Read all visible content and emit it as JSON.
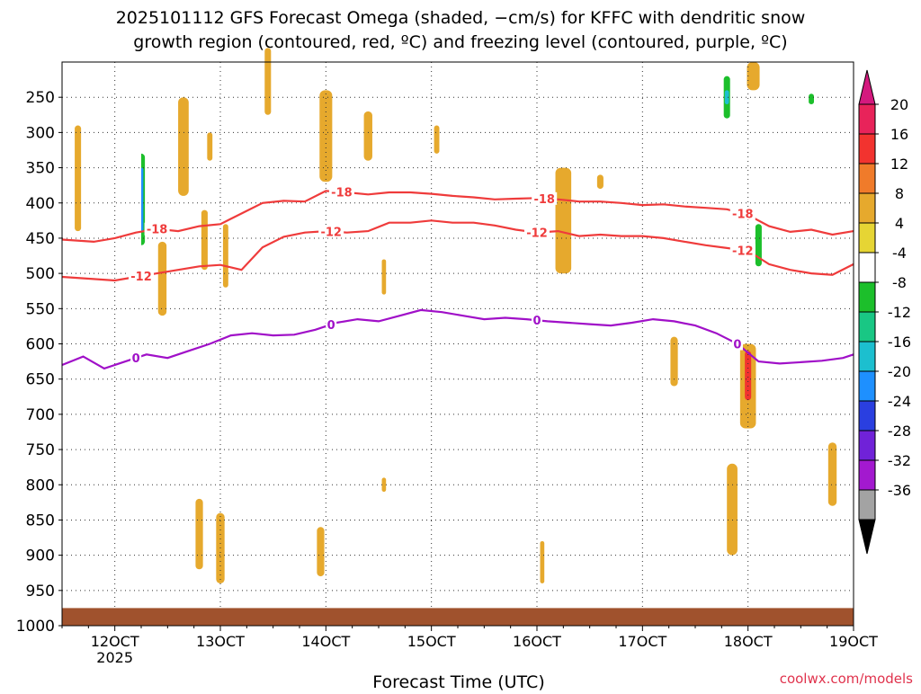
{
  "chart_data": {
    "type": "heatmap",
    "title_lines": [
      "2025101112 GFS Forecast Omega (shaded, −cm/s) for KFFC with dendritic snow",
      "growth region (contoured, red, ºC) and freezing level (contoured, purple, ºC)"
    ],
    "xlabel": "Forecast Time (UTC)",
    "x_ticks": [
      {
        "value": 12,
        "label": "12OCT",
        "sublabel": "2025"
      },
      {
        "value": 13,
        "label": "13OCT",
        "sublabel": ""
      },
      {
        "value": 14,
        "label": "14OCT",
        "sublabel": ""
      },
      {
        "value": 15,
        "label": "15OCT",
        "sublabel": ""
      },
      {
        "value": 16,
        "label": "16OCT",
        "sublabel": ""
      },
      {
        "value": 17,
        "label": "17OCT",
        "sublabel": ""
      },
      {
        "value": 18,
        "label": "18OCT",
        "sublabel": ""
      },
      {
        "value": 19,
        "label": "19OCT",
        "sublabel": ""
      }
    ],
    "x_range": [
      11.5,
      19.0
    ],
    "y_ticks": [
      250,
      300,
      350,
      400,
      450,
      500,
      550,
      600,
      650,
      700,
      750,
      800,
      850,
      900,
      950,
      1000
    ],
    "y_range": [
      200,
      1000
    ],
    "credit": "coolwx.com/models",
    "colorbar": {
      "labels": [
        "20",
        "16",
        "12",
        "8",
        "4",
        "-4",
        "-8",
        "-12",
        "-16",
        "-20",
        "-24",
        "-28",
        "-32",
        "-36"
      ],
      "colors": [
        "#e8235a",
        "#f2332f",
        "#f07b2a",
        "#e6a92d",
        "#e6d534",
        "#ffffff",
        "#1cbf2b",
        "#19c784",
        "#1cbfcf",
        "#1e90ff",
        "#2a3fe0",
        "#7022d8",
        "#a319cf",
        "#a3a3a3"
      ],
      "top_arrow_color": "#d4197e",
      "bottom_arrow_color": "#000000"
    },
    "contour_colors": {
      "dgz": "#ef3b3b",
      "freezing": "#a010c8",
      "ground": "#a0522d"
    },
    "dgz_minus18": {
      "x": [
        11.5,
        11.8,
        12.0,
        12.2,
        12.4,
        12.6,
        12.8,
        13.0,
        13.2,
        13.4,
        13.6,
        13.8,
        14.0,
        14.2,
        14.4,
        14.6,
        14.8,
        15.0,
        15.2,
        15.4,
        15.6,
        15.8,
        16.0,
        16.2,
        16.4,
        16.6,
        16.8,
        17.0,
        17.2,
        17.4,
        17.6,
        17.8,
        18.0,
        18.2,
        18.4,
        18.6,
        18.8,
        19.0
      ],
      "y": [
        452,
        455,
        450,
        442,
        437,
        440,
        433,
        430,
        415,
        400,
        397,
        398,
        383,
        385,
        388,
        385,
        385,
        387,
        390,
        392,
        395,
        394,
        393,
        395,
        398,
        398,
        400,
        403,
        402,
        405,
        407,
        409,
        417,
        433,
        441,
        438,
        445,
        440
      ],
      "labels": [
        {
          "x": 14.15,
          "text": "-18"
        },
        {
          "x": 16.07,
          "text": "-18"
        },
        {
          "x": 17.95,
          "text": "-18"
        },
        {
          "x": 12.4,
          "text": "-18"
        }
      ]
    },
    "dgz_minus12": {
      "x": [
        11.5,
        11.8,
        12.0,
        12.2,
        12.4,
        12.6,
        12.8,
        13.0,
        13.2,
        13.4,
        13.6,
        13.8,
        14.0,
        14.2,
        14.4,
        14.6,
        14.8,
        15.0,
        15.2,
        15.4,
        15.6,
        15.8,
        16.0,
        16.2,
        16.4,
        16.6,
        16.8,
        17.0,
        17.2,
        17.4,
        17.6,
        17.8,
        18.0,
        18.2,
        18.4,
        18.6,
        18.8,
        19.0
      ],
      "y": [
        505,
        508,
        510,
        505,
        500,
        495,
        490,
        488,
        495,
        463,
        448,
        442,
        440,
        442,
        440,
        428,
        428,
        425,
        428,
        428,
        432,
        438,
        442,
        440,
        447,
        445,
        447,
        447,
        450,
        455,
        460,
        464,
        468,
        487,
        495,
        500,
        502,
        487
      ],
      "labels": [
        {
          "x": 14.05,
          "text": "-12"
        },
        {
          "x": 16.0,
          "text": "-12"
        },
        {
          "x": 17.95,
          "text": "-12"
        },
        {
          "x": 12.25,
          "text": "-12"
        }
      ]
    },
    "freezing_level": {
      "x": [
        11.5,
        11.7,
        11.9,
        12.1,
        12.3,
        12.5,
        12.7,
        12.9,
        13.1,
        13.3,
        13.5,
        13.7,
        13.9,
        14.1,
        14.3,
        14.5,
        14.7,
        14.9,
        15.1,
        15.3,
        15.5,
        15.7,
        15.9,
        16.1,
        16.3,
        16.5,
        16.7,
        16.9,
        17.1,
        17.3,
        17.5,
        17.7,
        17.9,
        18.1,
        18.3,
        18.5,
        18.7,
        18.9,
        19.0
      ],
      "y": [
        630,
        618,
        635,
        625,
        615,
        620,
        610,
        600,
        588,
        585,
        588,
        587,
        580,
        570,
        565,
        568,
        560,
        552,
        555,
        560,
        565,
        563,
        565,
        568,
        570,
        572,
        574,
        570,
        565,
        568,
        574,
        585,
        600,
        625,
        628,
        626,
        624,
        620,
        615
      ],
      "labels": [
        {
          "x": 12.2,
          "text": "0"
        },
        {
          "x": 14.05,
          "text": "0"
        },
        {
          "x": 16.0,
          "text": "0"
        },
        {
          "x": 17.9,
          "text": "0"
        }
      ]
    },
    "omega_cells": [
      {
        "x": 12.25,
        "y0": 330,
        "y1": 460,
        "w": 0.07,
        "v": -12
      },
      {
        "x": 12.25,
        "y0": 350,
        "y1": 440,
        "w": 0.04,
        "v": -24
      },
      {
        "x": 12.2,
        "y0": 285,
        "y1": 470,
        "w": 0.1,
        "v": -8
      },
      {
        "x": 12.0,
        "y0": 300,
        "y1": 395,
        "w": 0.06,
        "v": -8
      },
      {
        "x": 12.12,
        "y0": 420,
        "y1": 560,
        "w": 0.05,
        "v": -8
      },
      {
        "x": 12.4,
        "y0": 350,
        "y1": 460,
        "w": 0.05,
        "v": -8
      },
      {
        "x": 11.65,
        "y0": 290,
        "y1": 440,
        "w": 0.06,
        "v": 6
      },
      {
        "x": 12.45,
        "y0": 455,
        "y1": 560,
        "w": 0.08,
        "v": 6
      },
      {
        "x": 12.65,
        "y0": 250,
        "y1": 390,
        "w": 0.1,
        "v": 6
      },
      {
        "x": 12.9,
        "y0": 300,
        "y1": 340,
        "w": 0.05,
        "v": 6
      },
      {
        "x": 13.2,
        "y0": 320,
        "y1": 420,
        "w": 0.06,
        "v": -8
      },
      {
        "x": 13.15,
        "y0": 530,
        "y1": 610,
        "w": 0.05,
        "v": -8
      },
      {
        "x": 12.85,
        "y0": 410,
        "y1": 495,
        "w": 0.06,
        "v": 6
      },
      {
        "x": 13.05,
        "y0": 430,
        "y1": 520,
        "w": 0.05,
        "v": 6
      },
      {
        "x": 13.45,
        "y0": 180,
        "y1": 275,
        "w": 0.06,
        "v": 6
      },
      {
        "x": 14.0,
        "y0": 240,
        "y1": 370,
        "w": 0.12,
        "v": 6
      },
      {
        "x": 14.4,
        "y0": 270,
        "y1": 340,
        "w": 0.08,
        "v": 6
      },
      {
        "x": 15.05,
        "y0": 290,
        "y1": 330,
        "w": 0.05,
        "v": 6
      },
      {
        "x": 14.55,
        "y0": 480,
        "y1": 530,
        "w": 0.04,
        "v": 6
      },
      {
        "x": 16.25,
        "y0": 350,
        "y1": 500,
        "w": 0.15,
        "v": 6
      },
      {
        "x": 16.6,
        "y0": 360,
        "y1": 380,
        "w": 0.06,
        "v": 6
      },
      {
        "x": 17.25,
        "y0": 260,
        "y1": 300,
        "w": 0.08,
        "v": -8
      },
      {
        "x": 17.25,
        "y0": 320,
        "y1": 400,
        "w": 0.08,
        "v": -8
      },
      {
        "x": 17.3,
        "y0": 590,
        "y1": 660,
        "w": 0.07,
        "v": 6
      },
      {
        "x": 17.8,
        "y0": 200,
        "y1": 300,
        "w": 0.12,
        "v": -8
      },
      {
        "x": 17.8,
        "y0": 220,
        "y1": 280,
        "w": 0.06,
        "v": -12
      },
      {
        "x": 17.8,
        "y0": 240,
        "y1": 260,
        "w": 0.04,
        "v": -20
      },
      {
        "x": 17.97,
        "y0": 340,
        "y1": 370,
        "w": 0.08,
        "v": -8
      },
      {
        "x": 18.1,
        "y0": 420,
        "y1": 530,
        "w": 0.1,
        "v": -8
      },
      {
        "x": 18.1,
        "y0": 430,
        "y1": 490,
        "w": 0.06,
        "v": -12
      },
      {
        "x": 18.15,
        "y0": 350,
        "y1": 420,
        "w": 0.06,
        "v": -8
      },
      {
        "x": 18.05,
        "y0": 200,
        "y1": 240,
        "w": 0.12,
        "v": 6
      },
      {
        "x": 18.0,
        "y0": 600,
        "y1": 720,
        "w": 0.15,
        "v": 6
      },
      {
        "x": 18.0,
        "y0": 610,
        "y1": 680,
        "w": 0.06,
        "v": 12
      },
      {
        "x": 18.05,
        "y0": 740,
        "y1": 880,
        "w": 0.1,
        "v": -8
      },
      {
        "x": 17.85,
        "y0": 770,
        "y1": 900,
        "w": 0.1,
        "v": 6
      },
      {
        "x": 18.6,
        "y0": 220,
        "y1": 310,
        "w": 0.12,
        "v": -8
      },
      {
        "x": 18.6,
        "y0": 245,
        "y1": 260,
        "w": 0.05,
        "v": -12
      },
      {
        "x": 18.75,
        "y0": 440,
        "y1": 455,
        "w": 0.05,
        "v": -8
      },
      {
        "x": 18.6,
        "y0": 700,
        "y1": 800,
        "w": 0.07,
        "v": -8
      },
      {
        "x": 18.8,
        "y0": 740,
        "y1": 830,
        "w": 0.08,
        "v": 6
      },
      {
        "x": 18.95,
        "y0": 770,
        "y1": 810,
        "w": 0.08,
        "v": -8
      },
      {
        "x": 11.95,
        "y0": 830,
        "y1": 940,
        "w": 0.08,
        "v": -8
      },
      {
        "x": 12.1,
        "y0": 860,
        "y1": 950,
        "w": 0.06,
        "v": -8
      },
      {
        "x": 12.8,
        "y0": 820,
        "y1": 920,
        "w": 0.07,
        "v": 6
      },
      {
        "x": 13.0,
        "y0": 840,
        "y1": 940,
        "w": 0.08,
        "v": 6
      },
      {
        "x": 13.95,
        "y0": 860,
        "y1": 930,
        "w": 0.07,
        "v": 6
      },
      {
        "x": 16.05,
        "y0": 880,
        "y1": 940,
        "w": 0.04,
        "v": 6
      },
      {
        "x": 14.55,
        "y0": 790,
        "y1": 810,
        "w": 0.04,
        "v": 6
      }
    ]
  }
}
